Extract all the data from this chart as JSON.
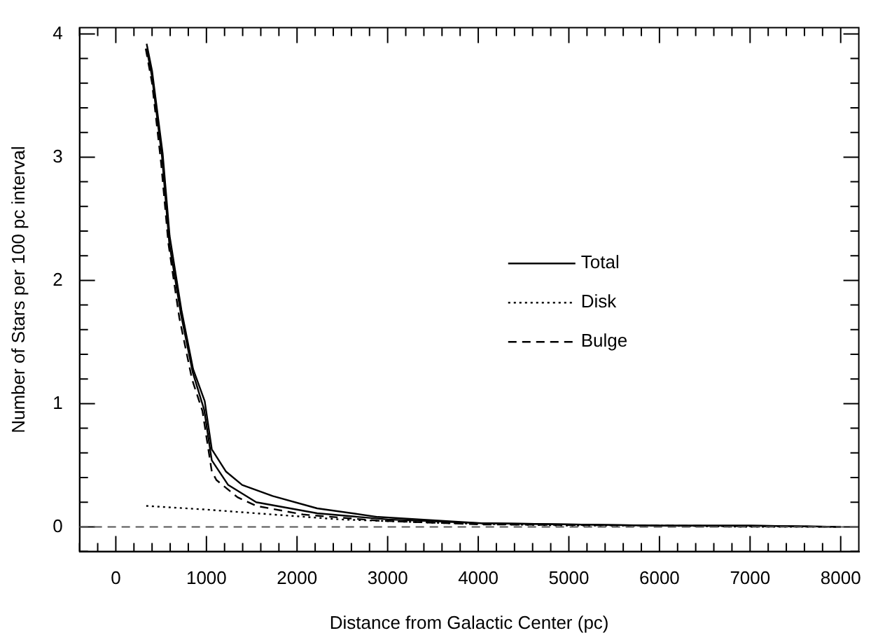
{
  "chart_data": {
    "type": "line",
    "xlabel": "Distance from Galactic Center (pc)",
    "ylabel": "Number of Stars per 100 pc interval",
    "xlim": [
      -400,
      8200
    ],
    "ylim": [
      -0.2,
      4.05
    ],
    "xticks": [
      {
        "value": -400,
        "label": null
      },
      {
        "value": -200,
        "label": null
      },
      0,
      {
        "value": 200,
        "label": null
      },
      {
        "value": 400,
        "label": null
      },
      {
        "value": 600,
        "label": null
      },
      {
        "value": 800,
        "label": null
      },
      1000,
      {
        "value": 1200,
        "label": null
      },
      {
        "value": 1400,
        "label": null
      },
      {
        "value": 1600,
        "label": null
      },
      {
        "value": 1800,
        "label": null
      },
      2000,
      {
        "value": 2200,
        "label": null
      },
      {
        "value": 2400,
        "label": null
      },
      {
        "value": 2600,
        "label": null
      },
      {
        "value": 2800,
        "label": null
      },
      3000,
      {
        "value": 3200,
        "label": null
      },
      {
        "value": 3400,
        "label": null
      },
      {
        "value": 3600,
        "label": null
      },
      {
        "value": 3800,
        "label": null
      },
      4000,
      {
        "value": 4200,
        "label": null
      },
      {
        "value": 4400,
        "label": null
      },
      {
        "value": 4600,
        "label": null
      },
      {
        "value": 4800,
        "label": null
      },
      5000,
      {
        "value": 5200,
        "label": null
      },
      {
        "value": 5400,
        "label": null
      },
      {
        "value": 5600,
        "label": null
      },
      {
        "value": 5800,
        "label": null
      },
      6000,
      {
        "value": 6200,
        "label": null
      },
      {
        "value": 6400,
        "label": null
      },
      {
        "value": 6600,
        "label": null
      },
      {
        "value": 6800,
        "label": null
      },
      7000,
      {
        "value": 7200,
        "label": null
      },
      {
        "value": 7400,
        "label": null
      },
      {
        "value": 7600,
        "label": null
      },
      {
        "value": 7800,
        "label": null
      },
      8000
    ],
    "yticks": [
      {
        "value": -0.2,
        "label": null
      },
      0,
      {
        "value": 0.2,
        "label": null
      },
      {
        "value": 0.4,
        "label": null
      },
      {
        "value": 0.6,
        "label": null
      },
      {
        "value": 0.8,
        "label": null
      },
      1,
      {
        "value": 1.2,
        "label": null
      },
      {
        "value": 1.4,
        "label": null
      },
      {
        "value": 1.6,
        "label": null
      },
      {
        "value": 1.8,
        "label": null
      },
      2,
      {
        "value": 2.2,
        "label": null
      },
      {
        "value": 2.4,
        "label": null
      },
      {
        "value": 2.6,
        "label": null
      },
      {
        "value": 2.8,
        "label": null
      },
      3,
      {
        "value": 3.2,
        "label": null
      },
      {
        "value": 3.4,
        "label": null
      },
      {
        "value": 3.6,
        "label": null
      },
      {
        "value": 3.8,
        "label": null
      },
      4
    ],
    "grid": false,
    "legend": "right",
    "marker": "none",
    "ref_lines": [
      {
        "axis": "y",
        "value": 0,
        "color": "#555555",
        "line_style": "dashed"
      }
    ],
    "series": [
      {
        "name": "Total",
        "color": "#000000",
        "line_style": "solid",
        "x": [
          340,
          400,
          517,
          594,
          724,
          853,
          981,
          1059,
          1214,
          1395,
          1731,
          2222,
          2894,
          4031,
          5000,
          6000,
          7000,
          8000
        ],
        "values": [
          3.92,
          3.7,
          3.03,
          2.36,
          1.76,
          1.28,
          1.02,
          0.63,
          0.45,
          0.34,
          0.25,
          0.15,
          0.08,
          0.03,
          0.02,
          0.01,
          0.01,
          0
        ]
      },
      {
        "color": "#000000",
        "line_style": "solid",
        "x": [
          340,
          400,
          510,
          590,
          720,
          850,
          975,
          1059,
          1240,
          1550,
          2222,
          3000,
          4000,
          5000,
          6000,
          7000,
          8000
        ],
        "values": [
          3.88,
          3.65,
          3.0,
          2.3,
          1.72,
          1.25,
          0.95,
          0.54,
          0.34,
          0.2,
          0.11,
          0.06,
          0.03,
          0.02,
          0.01,
          0.01,
          0
        ]
      },
      {
        "name": "Disk",
        "color": "#000000",
        "line_style": "dotted",
        "x": [
          336,
          1000,
          1550,
          2480,
          3650,
          5000,
          6000,
          7000,
          8000
        ],
        "values": [
          0.17,
          0.14,
          0.11,
          0.06,
          0.03,
          0.01,
          0.01,
          0,
          0
        ]
      },
      {
        "name": "Bulge",
        "color": "#000000",
        "line_style": "dashed",
        "x": [
          330,
          400,
          500,
          580,
          700,
          840,
          956,
          1059,
          1110,
          1343,
          1550,
          2067,
          2894,
          4000,
          6000,
          8000
        ],
        "values": [
          3.88,
          3.6,
          2.95,
          2.3,
          1.7,
          1.2,
          0.94,
          0.45,
          0.38,
          0.24,
          0.17,
          0.1,
          0.05,
          0.02,
          0.01,
          0
        ]
      }
    ]
  }
}
